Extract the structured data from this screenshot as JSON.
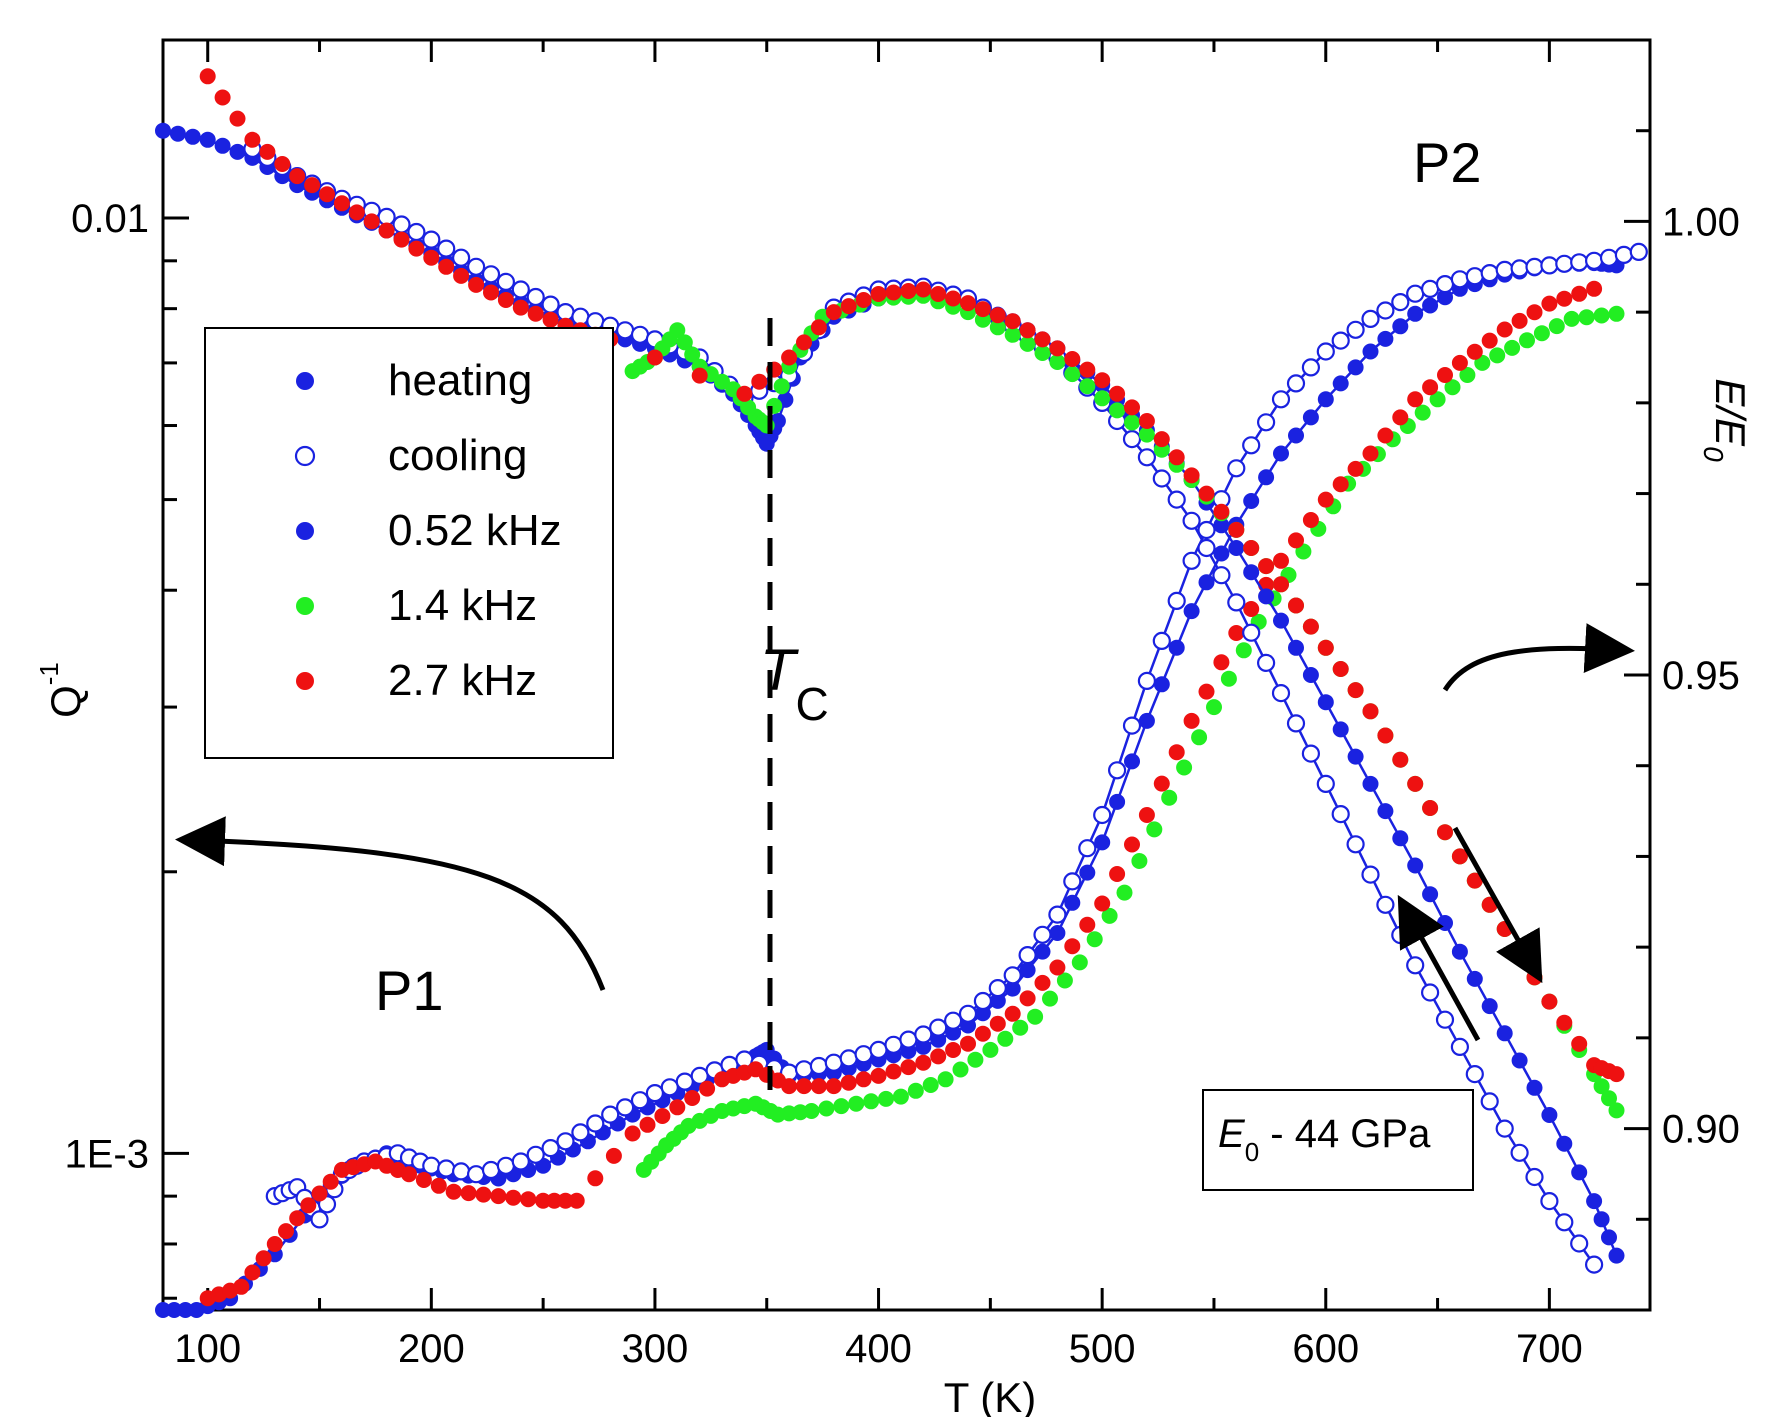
{
  "chart_data": {
    "type": "scatter",
    "xlabel": "T (K)",
    "ylabel_left": "Q",
    "ylabel_left_sup": "-1",
    "ylabel_right": "E/E",
    "ylabel_right_sub": "0",
    "xlim": [
      80,
      745
    ],
    "ylim_left": [
      0.00068,
      0.0155
    ],
    "ylim_right": [
      0.88,
      1.02
    ],
    "left_scale": "log",
    "x_ticks": [
      {
        "v": 100,
        "label": "100"
      },
      {
        "v": 200,
        "label": "200"
      },
      {
        "v": 300,
        "label": "300"
      },
      {
        "v": 400,
        "label": "400"
      },
      {
        "v": 500,
        "label": "500"
      },
      {
        "v": 600,
        "label": "600"
      },
      {
        "v": 700,
        "label": "700"
      }
    ],
    "left_ticks": [
      {
        "v": 0.01,
        "label": "0.01"
      },
      {
        "v": 0.001,
        "label": "1E-3"
      }
    ],
    "right_ticks": [
      {
        "v": 1.0,
        "label": "1.00"
      },
      {
        "v": 0.95,
        "label": "0.95"
      },
      {
        "v": 0.9,
        "label": "0.90"
      }
    ],
    "legend": {
      "placement": "upper-left",
      "entries": [
        {
          "label": "heating",
          "marker": "filled",
          "color": "#1a22e0"
        },
        {
          "label": "cooling",
          "marker": "open",
          "color": "#1a22e0"
        },
        {
          "label": "0.52 kHz",
          "marker": "filled",
          "color": "#1a22e0"
        },
        {
          "label": "1.4 kHz",
          "marker": "filled",
          "color": "#22ee22"
        },
        {
          "label": "2.7 kHz",
          "marker": "filled",
          "color": "#ee1111"
        }
      ]
    },
    "annotations": {
      "tc_label": "T",
      "tc_sub": "C",
      "tc_temperature": 350,
      "p1": "P1",
      "p2": "P2",
      "modulus_box_main": "E",
      "modulus_box_sub": "0",
      "modulus_box_rest": " - 44 GPa"
    },
    "series": [
      {
        "name": "0.52 kHz",
        "axis": "left",
        "style": "filled",
        "color": "#1a22e0",
        "points": [
          [
            80,
            0.00068
          ],
          [
            95,
            0.00068
          ],
          [
            110,
            0.0007
          ],
          [
            130,
            0.00078
          ],
          [
            150,
            0.0009
          ],
          [
            165,
            0.00097
          ],
          [
            180,
            0.001
          ],
          [
            195,
            0.00097
          ],
          [
            210,
            0.00095
          ],
          [
            230,
            0.00094
          ],
          [
            250,
            0.00097
          ],
          [
            270,
            0.00103
          ],
          [
            290,
            0.0011
          ],
          [
            310,
            0.00116
          ],
          [
            330,
            0.00122
          ],
          [
            345,
            0.00127
          ],
          [
            350,
            0.00129
          ],
          [
            360,
            0.00121
          ],
          [
            380,
            0.00122
          ],
          [
            400,
            0.00126
          ],
          [
            420,
            0.0013
          ],
          [
            440,
            0.00137
          ],
          [
            460,
            0.0015
          ],
          [
            480,
            0.00172
          ],
          [
            500,
            0.00215
          ],
          [
            520,
            0.0029
          ],
          [
            540,
            0.0038
          ],
          [
            560,
            0.0047
          ],
          [
            580,
            0.0056
          ],
          [
            600,
            0.0064
          ],
          [
            620,
            0.0072
          ],
          [
            640,
            0.0079
          ],
          [
            660,
            0.0084
          ],
          [
            680,
            0.0087
          ],
          [
            700,
            0.0089
          ],
          [
            720,
            0.00895
          ],
          [
            730,
            0.0089
          ]
        ]
      },
      {
        "name": "cooling 0.52 kHz",
        "axis": "left",
        "style": "open",
        "color": "#1a22e0",
        "points": [
          [
            130,
            0.0009
          ],
          [
            140,
            0.00092
          ],
          [
            150,
            0.00085
          ],
          [
            160,
            0.00095
          ],
          [
            170,
            0.00098
          ],
          [
            185,
            0.001
          ],
          [
            200,
            0.00097
          ],
          [
            220,
            0.00095
          ],
          [
            240,
            0.00098
          ],
          [
            260,
            0.00103
          ],
          [
            280,
            0.0011
          ],
          [
            300,
            0.00116
          ],
          [
            320,
            0.00121
          ],
          [
            340,
            0.00126
          ],
          [
            360,
            0.00122
          ],
          [
            380,
            0.00125
          ],
          [
            400,
            0.00129
          ],
          [
            420,
            0.00134
          ],
          [
            440,
            0.00141
          ],
          [
            460,
            0.00155
          ],
          [
            480,
            0.0018
          ],
          [
            500,
            0.0023
          ],
          [
            520,
            0.0032
          ],
          [
            540,
            0.0043
          ],
          [
            560,
            0.0054
          ],
          [
            580,
            0.0064
          ],
          [
            600,
            0.0072
          ],
          [
            620,
            0.0078
          ],
          [
            640,
            0.0083
          ],
          [
            660,
            0.0086
          ],
          [
            680,
            0.0088
          ],
          [
            700,
            0.0089
          ],
          [
            720,
            0.009
          ],
          [
            740,
            0.0092
          ]
        ]
      },
      {
        "name": "1.4 kHz",
        "axis": "left",
        "style": "filled",
        "color": "#22ee22",
        "points": [
          [
            295,
            0.00096
          ],
          [
            305,
            0.00102
          ],
          [
            315,
            0.00107
          ],
          [
            330,
            0.00111
          ],
          [
            345,
            0.00113
          ],
          [
            355,
            0.0011
          ],
          [
            370,
            0.00111
          ],
          [
            390,
            0.00113
          ],
          [
            410,
            0.00115
          ],
          [
            430,
            0.0012
          ],
          [
            450,
            0.00129
          ],
          [
            470,
            0.0014
          ],
          [
            490,
            0.0016
          ],
          [
            510,
            0.0019
          ],
          [
            530,
            0.0024
          ],
          [
            550,
            0.003
          ],
          [
            570,
            0.0037
          ],
          [
            590,
            0.0044
          ],
          [
            610,
            0.0052
          ],
          [
            630,
            0.0058
          ],
          [
            650,
            0.0064
          ],
          [
            670,
            0.007
          ],
          [
            690,
            0.0074
          ],
          [
            710,
            0.0078
          ],
          [
            730,
            0.0079
          ]
        ]
      },
      {
        "name": "2.7 kHz",
        "axis": "left",
        "style": "filled",
        "color": "#ee1111",
        "points": [
          [
            100,
            0.0007
          ],
          [
            115,
            0.00072
          ],
          [
            130,
            0.0008
          ],
          [
            145,
            0.00088
          ],
          [
            160,
            0.00096
          ],
          [
            175,
            0.00098
          ],
          [
            190,
            0.00095
          ],
          [
            210,
            0.00091
          ],
          [
            230,
            0.0009
          ],
          [
            250,
            0.00089
          ],
          [
            265,
            0.00089
          ],
          [
            290,
            0.00105
          ],
          [
            310,
            0.00112
          ],
          [
            330,
            0.0012
          ],
          [
            345,
            0.00123
          ],
          [
            360,
            0.00118
          ],
          [
            380,
            0.00118
          ],
          [
            400,
            0.00121
          ],
          [
            420,
            0.00125
          ],
          [
            440,
            0.00131
          ],
          [
            460,
            0.00141
          ],
          [
            480,
            0.00158
          ],
          [
            500,
            0.00185
          ],
          [
            520,
            0.0023
          ],
          [
            540,
            0.0029
          ],
          [
            560,
            0.0036
          ],
          [
            580,
            0.0043
          ],
          [
            600,
            0.005
          ],
          [
            620,
            0.0056
          ],
          [
            640,
            0.0064
          ],
          [
            660,
            0.007
          ],
          [
            680,
            0.0076
          ],
          [
            700,
            0.0081
          ],
          [
            720,
            0.0084
          ]
        ]
      },
      {
        "name": "E/E0 0.52 kHz",
        "axis": "right",
        "style": "filled",
        "color": "#1a22e0",
        "points": [
          [
            80,
            1.01
          ],
          [
            100,
            1.009
          ],
          [
            120,
            1.007
          ],
          [
            140,
            1.004
          ],
          [
            160,
            1.0015
          ],
          [
            180,
            0.999
          ],
          [
            200,
            0.9965
          ],
          [
            220,
            0.9935
          ],
          [
            240,
            0.991
          ],
          [
            260,
            0.9888
          ],
          [
            280,
            0.9875
          ],
          [
            300,
            0.986
          ],
          [
            320,
            0.984
          ],
          [
            335,
            0.981
          ],
          [
            345,
            0.9775
          ],
          [
            350,
            0.9755
          ],
          [
            355,
            0.978
          ],
          [
            365,
            0.985
          ],
          [
            380,
            0.9895
          ],
          [
            400,
            0.9915
          ],
          [
            420,
            0.992
          ],
          [
            440,
            0.9912
          ],
          [
            460,
            0.989
          ],
          [
            480,
            0.986
          ],
          [
            500,
            0.982
          ],
          [
            520,
            0.977
          ],
          [
            540,
            0.9715
          ],
          [
            560,
            0.964
          ],
          [
            580,
            0.956
          ],
          [
            600,
            0.947
          ],
          [
            620,
            0.938
          ],
          [
            640,
            0.929
          ],
          [
            660,
            0.9195
          ],
          [
            680,
            0.9105
          ],
          [
            700,
            0.9015
          ],
          [
            720,
            0.892
          ],
          [
            730,
            0.886
          ]
        ]
      },
      {
        "name": "E/E0 cooling",
        "axis": "right",
        "style": "open",
        "color": "#1a22e0",
        "points": [
          [
            120,
            1.008
          ],
          [
            140,
            1.005
          ],
          [
            160,
            1.0025
          ],
          [
            180,
            1.0005
          ],
          [
            200,
            0.998
          ],
          [
            220,
            0.995
          ],
          [
            240,
            0.9925
          ],
          [
            260,
            0.99
          ],
          [
            280,
            0.9885
          ],
          [
            300,
            0.987
          ],
          [
            320,
            0.985
          ],
          [
            340,
            0.9805
          ],
          [
            360,
            0.983
          ],
          [
            380,
            0.9905
          ],
          [
            400,
            0.9925
          ],
          [
            420,
            0.9928
          ],
          [
            440,
            0.9915
          ],
          [
            460,
            0.9885
          ],
          [
            480,
            0.985
          ],
          [
            500,
            0.98
          ],
          [
            520,
            0.974
          ],
          [
            540,
            0.967
          ],
          [
            560,
            0.958
          ],
          [
            580,
            0.948
          ],
          [
            600,
            0.938
          ],
          [
            620,
            0.928
          ],
          [
            640,
            0.918
          ],
          [
            660,
            0.909
          ],
          [
            680,
            0.9
          ],
          [
            700,
            0.892
          ],
          [
            720,
            0.885
          ]
        ]
      },
      {
        "name": "E/E0 1.4 kHz",
        "axis": "right",
        "style": "filled",
        "color": "#22ee22",
        "points": [
          [
            290,
            0.9835
          ],
          [
            300,
            0.985
          ],
          [
            310,
            0.988
          ],
          [
            320,
            0.984
          ],
          [
            335,
            0.9815
          ],
          [
            345,
            0.9785
          ],
          [
            350,
            0.9775
          ],
          [
            360,
            0.984
          ],
          [
            375,
            0.9895
          ],
          [
            400,
            0.9915
          ],
          [
            420,
            0.9918
          ],
          [
            440,
            0.99
          ],
          [
            460,
            0.9875
          ],
          [
            480,
            0.9845
          ],
          [
            500,
            0.9805
          ],
          [
            520,
            0.9765
          ],
          [
            540,
            0.9715
          ],
          [
            560,
            0.966
          ],
          [
            580,
            0.96
          ],
          [
            600,
            0.953
          ],
          [
            620,
            0.946
          ],
          [
            640,
            0.938
          ],
          [
            660,
            0.93
          ],
          [
            680,
            0.922
          ],
          [
            700,
            0.914
          ],
          [
            720,
            0.906
          ],
          [
            730,
            0.902
          ]
        ]
      },
      {
        "name": "E/E0 2.7 kHz",
        "axis": "right",
        "style": "filled",
        "color": "#ee1111",
        "points": [
          [
            100,
            1.016
          ],
          [
            120,
            1.009
          ],
          [
            140,
            1.005
          ],
          [
            160,
            1.002
          ],
          [
            180,
            0.999
          ],
          [
            200,
            0.996
          ],
          [
            220,
            0.993
          ],
          [
            240,
            0.9905
          ],
          [
            260,
            0.9885
          ],
          [
            280,
            0.987
          ],
          [
            340,
            0.981
          ],
          [
            360,
            0.985
          ],
          [
            380,
            0.99
          ],
          [
            400,
            0.992
          ],
          [
            420,
            0.9925
          ],
          [
            440,
            0.991
          ],
          [
            460,
            0.989
          ],
          [
            480,
            0.986
          ],
          [
            500,
            0.9825
          ],
          [
            520,
            0.978
          ],
          [
            540,
            0.972
          ],
          [
            560,
            0.966
          ],
          [
            580,
            0.96
          ],
          [
            600,
            0.953
          ],
          [
            620,
            0.946
          ],
          [
            640,
            0.938
          ],
          [
            660,
            0.93
          ],
          [
            680,
            0.922
          ],
          [
            700,
            0.914
          ],
          [
            720,
            0.907
          ],
          [
            730,
            0.906
          ]
        ]
      }
    ]
  }
}
